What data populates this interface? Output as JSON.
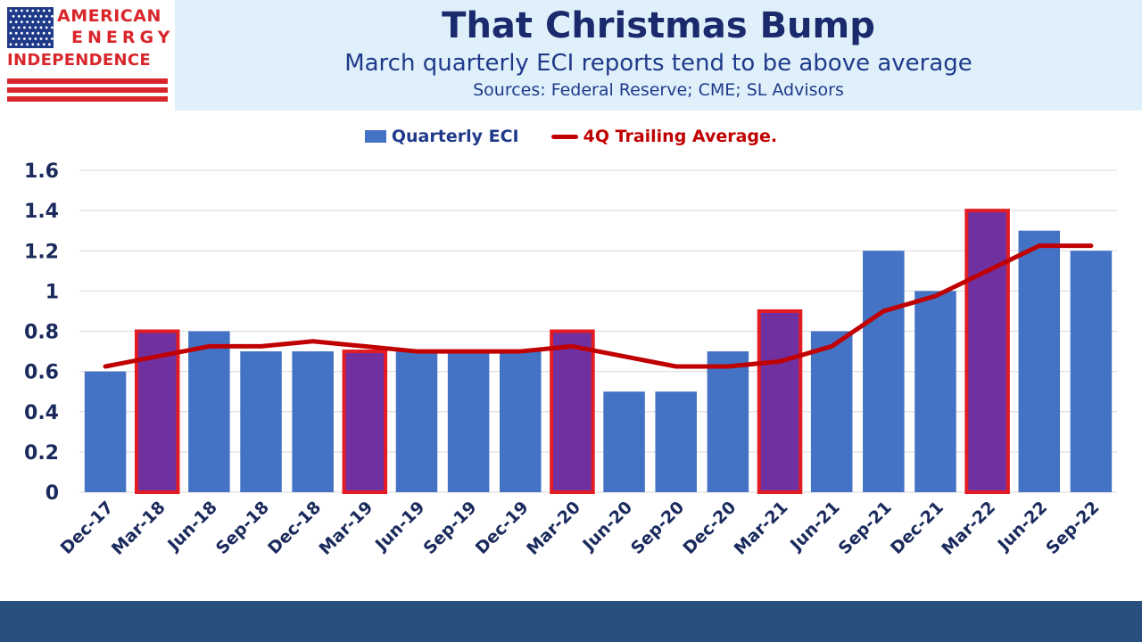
{
  "logo": {
    "line1": "AMERICAN",
    "line2": "ENERGY",
    "line3": "INDEPENDENCE",
    "colors": {
      "red": "#d8262b",
      "blue": "#1f3a8a"
    }
  },
  "header": {
    "title": "That Christmas Bump",
    "subtitle": "March quarterly ECI reports tend to be above average",
    "sources": "Sources: Federal Reserve; CME; SL Advisors"
  },
  "chart_data": {
    "type": "bar",
    "categories": [
      "Dec-17",
      "Mar-18",
      "Jun-18",
      "Sep-18",
      "Dec-18",
      "Mar-19",
      "Jun-19",
      "Sep-19",
      "Dec-19",
      "Mar-20",
      "Jun-20",
      "Sep-20",
      "Dec-20",
      "Mar-21",
      "Jun-21",
      "Sep-21",
      "Dec-21",
      "Mar-22",
      "Jun-22",
      "Sep-22"
    ],
    "series": [
      {
        "name": "Quarterly ECI",
        "type": "bar",
        "color": "#4472c4",
        "highlight_color": "#7030a0",
        "highlight_border": "#e31b23",
        "highlighted": [
          "Mar-18",
          "Mar-19",
          "Mar-20",
          "Mar-21",
          "Mar-22"
        ],
        "values": [
          0.6,
          0.8,
          0.8,
          0.7,
          0.7,
          0.7,
          0.7,
          0.7,
          0.7,
          0.8,
          0.5,
          0.5,
          0.7,
          0.9,
          0.8,
          1.2,
          1.0,
          1.4,
          1.3,
          1.2
        ]
      },
      {
        "name": "4Q Trailing Average.",
        "type": "line",
        "color": "#c00000",
        "values": [
          0.625,
          0.675,
          0.725,
          0.725,
          0.75,
          0.725,
          0.7,
          0.7,
          0.7,
          0.725,
          0.675,
          0.625,
          0.625,
          0.65,
          0.725,
          0.9,
          0.975,
          1.1,
          1.225,
          1.225
        ]
      }
    ],
    "ylim": [
      0,
      1.6
    ],
    "yticks": [
      "0",
      "0.2",
      "0.4",
      "0.6",
      "0.8",
      "1",
      "1.2",
      "1.4",
      "1.6"
    ],
    "ytick_values": [
      0,
      0.2,
      0.4,
      0.6,
      0.8,
      1.0,
      1.2,
      1.4,
      1.6
    ],
    "grid": true,
    "legend": "top-center",
    "xlabel": "",
    "ylabel": ""
  },
  "footer": {
    "color": "#28507e"
  }
}
